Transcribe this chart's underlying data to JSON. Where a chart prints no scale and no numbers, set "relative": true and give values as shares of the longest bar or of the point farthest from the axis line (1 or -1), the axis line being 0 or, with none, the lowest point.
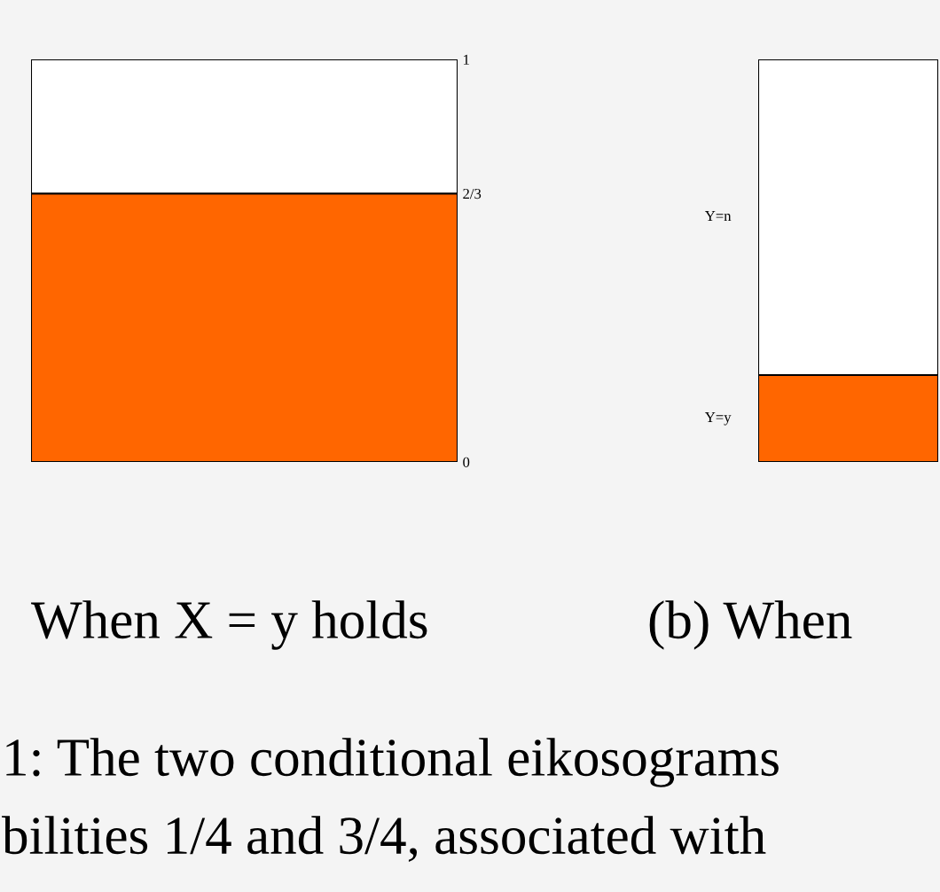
{
  "chart_data": [
    {
      "type": "bar",
      "stacked": true,
      "title": "When X = y holds",
      "categories": [
        null
      ],
      "series": [
        {
          "color": "#ff6600",
          "values": [
            0.667
          ]
        },
        {
          "color": "#ffffff",
          "values": [
            0.333
          ]
        }
      ],
      "ylim": [
        0,
        1
      ],
      "yticks": [
        0,
        {
          "value": 0.667,
          "label": "2/3"
        },
        1
      ],
      "grid": false,
      "legend": false,
      "annotations": [
        "1: The two conditional eikosograms",
        "bilities 1/4 and 3/4, associated with"
      ]
    },
    {
      "type": "bar",
      "stacked": true,
      "relative": true,
      "title": "(b) When",
      "categories": [
        null
      ],
      "series": [
        {
          "name": "Y=y",
          "color": "#ff6600",
          "values": [
            0.216
          ]
        },
        {
          "name": "Y=n",
          "color": "#ffffff",
          "values": [
            0.784
          ]
        }
      ],
      "grid": false,
      "legend": false
    }
  ]
}
